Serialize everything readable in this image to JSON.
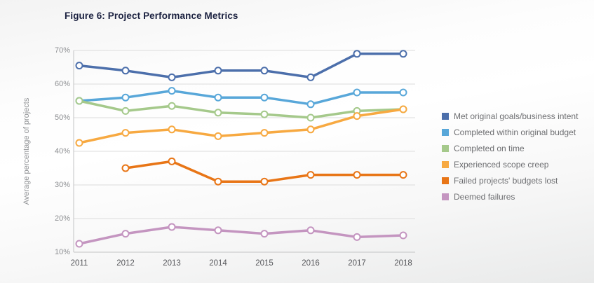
{
  "figure": {
    "title": "Figure 6: Project Performance Metrics"
  },
  "chart_data": {
    "type": "line",
    "title": "Figure 6: Project Performance Metrics",
    "xlabel": "",
    "ylabel": "Average percentage of projects",
    "categories": [
      "2011",
      "2012",
      "2013",
      "2014",
      "2015",
      "2016",
      "2017",
      "2018"
    ],
    "y_ticks": [
      "70%",
      "60%",
      "50%",
      "40%",
      "30%",
      "20%",
      "10%"
    ],
    "ylim": [
      10,
      70
    ],
    "grid": true,
    "legend_position": "right",
    "marker": "open-circle",
    "series": [
      {
        "name": "Met original goals/business intent",
        "color": "#4c6fab",
        "values": [
          65.5,
          64,
          62,
          64,
          64,
          62,
          69,
          69
        ]
      },
      {
        "name": "Completed within original budget",
        "color": "#58a7d9",
        "values": [
          55,
          56,
          58,
          56,
          56,
          54,
          57.5,
          57.5
        ]
      },
      {
        "name": "Completed on time",
        "color": "#a5c98b",
        "values": [
          55,
          52,
          53.5,
          51.5,
          51,
          50,
          52,
          52.5
        ]
      },
      {
        "name": "Experienced scope creep",
        "color": "#f7a941",
        "values": [
          42.5,
          45.5,
          46.5,
          44.5,
          45.5,
          46.5,
          50.5,
          52.5
        ]
      },
      {
        "name": "Failed projects' budgets lost",
        "color": "#e87516",
        "values": [
          null,
          35,
          37,
          31,
          31,
          33,
          33,
          33
        ]
      },
      {
        "name": "Deemed failures",
        "color": "#c495c0",
        "values": [
          12.5,
          15.5,
          17.5,
          16.5,
          15.5,
          16.5,
          14.5,
          15
        ]
      }
    ]
  },
  "colors": {
    "title_text": "#1b2140",
    "tick_text": "#8e9093",
    "year_text": "#55565a",
    "legend_text": "#6d6e71",
    "gridline": "#dcdcdc",
    "axis_line": "#c3c4c5",
    "marker_fill": "#ffffff"
  }
}
